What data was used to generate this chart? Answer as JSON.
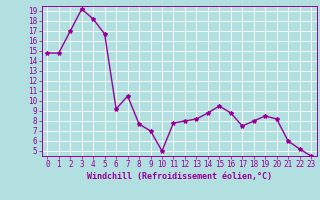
{
  "x": [
    0,
    1,
    2,
    3,
    4,
    5,
    6,
    7,
    8,
    9,
    10,
    11,
    12,
    13,
    14,
    15,
    16,
    17,
    18,
    19,
    20,
    21,
    22,
    23
  ],
  "y": [
    14.8,
    14.8,
    17.0,
    19.2,
    18.2,
    16.7,
    9.2,
    10.5,
    7.7,
    7.0,
    5.0,
    7.8,
    8.0,
    8.2,
    8.8,
    9.5,
    8.8,
    7.5,
    8.0,
    8.5,
    8.2,
    6.0,
    5.2,
    4.5
  ],
  "line_color": "#990099",
  "marker": "*",
  "marker_size": 3,
  "background_color": "#b2dfdf",
  "grid_color": "#ffffff",
  "xlabel": "Windchill (Refroidissement éolien,°C)",
  "ylim_min": 4.5,
  "ylim_max": 19.5,
  "xlim_min": -0.5,
  "xlim_max": 23.5,
  "yticks": [
    5,
    6,
    7,
    8,
    9,
    10,
    11,
    12,
    13,
    14,
    15,
    16,
    17,
    18,
    19
  ],
  "xticks": [
    0,
    1,
    2,
    3,
    4,
    5,
    6,
    7,
    8,
    9,
    10,
    11,
    12,
    13,
    14,
    15,
    16,
    17,
    18,
    19,
    20,
    21,
    22,
    23
  ],
  "tick_color": "#990099",
  "font_size": 5.5,
  "xlabel_fontsize": 6.0,
  "line_width": 1.0
}
